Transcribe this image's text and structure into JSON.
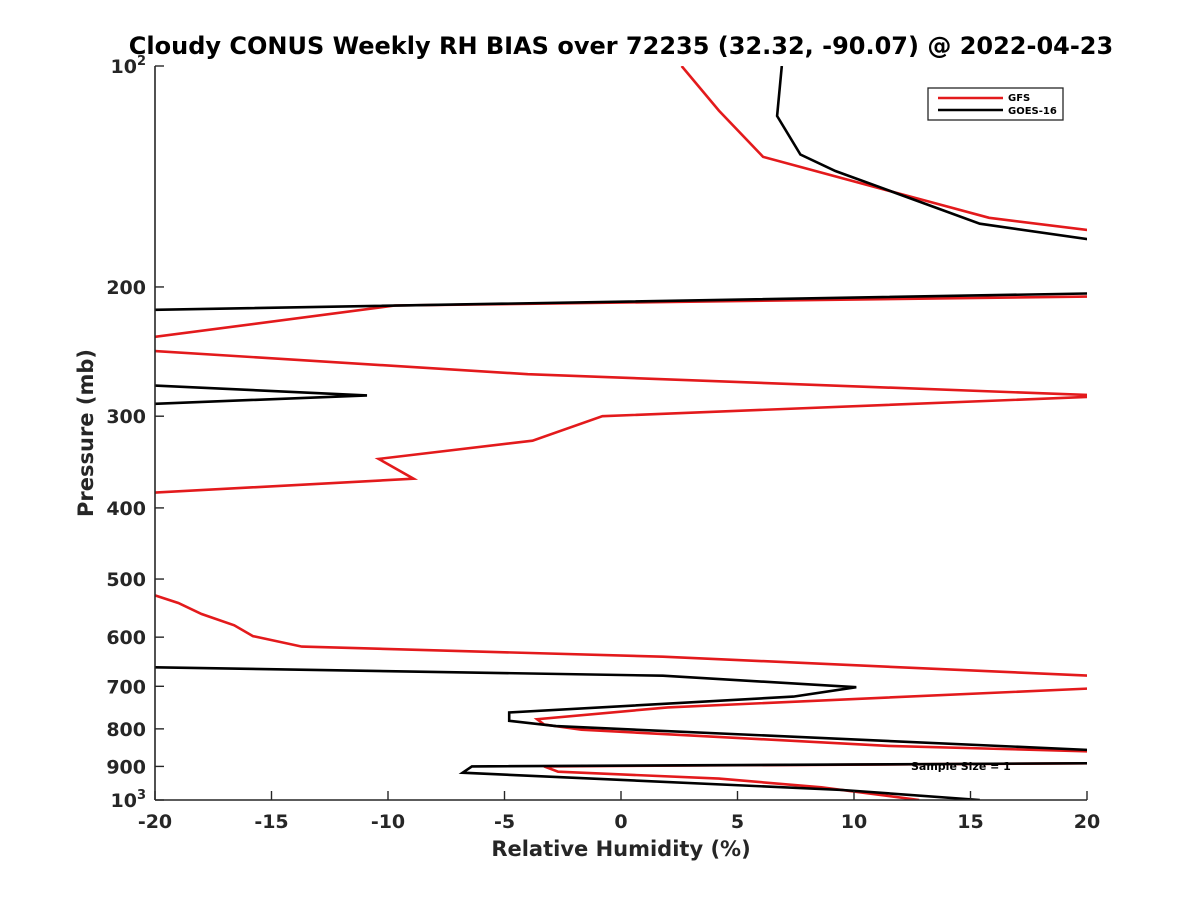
{
  "chart_data": {
    "type": "line",
    "title": "Cloudy CONUS Weekly RH BIAS over 72235 (32.32, -90.07) @ 2022-04-23",
    "xlabel": "Relative Humidity (%)",
    "ylabel": "Pressure (mb)",
    "xlim": [
      -20,
      20
    ],
    "ylim": [
      100,
      1000
    ],
    "yscale": "log",
    "xticks": [
      -20,
      -15,
      -10,
      -5,
      0,
      5,
      10,
      15,
      20
    ],
    "xtick_labels": [
      "-20",
      "-15",
      "-10",
      "-5",
      "0",
      "5",
      "10",
      "15",
      "20"
    ],
    "yticks": [
      {
        "value": 100,
        "base": "10",
        "exp": "2"
      },
      {
        "value": 200,
        "label": "200"
      },
      {
        "value": 300,
        "label": "300"
      },
      {
        "value": 400,
        "label": "400"
      },
      {
        "value": 500,
        "label": "500"
      },
      {
        "value": 600,
        "label": "600"
      },
      {
        "value": 700,
        "label": "700"
      },
      {
        "value": 800,
        "label": "800"
      },
      {
        "value": 900,
        "label": "900"
      },
      {
        "value": 1000,
        "base": "10",
        "exp": "3"
      }
    ],
    "legend_position": "top-right",
    "annotation": "Sample Size = 1",
    "series": [
      {
        "name": "GFS",
        "color": "#e31a1c",
        "points": [
          [
            2.6,
            100
          ],
          [
            4.2,
            115
          ],
          [
            6.1,
            133
          ],
          [
            15.8,
            161
          ],
          [
            20.5,
            168
          ],
          [
            20.5,
            206
          ],
          [
            -9.7,
            212
          ],
          [
            -20.5,
            235
          ],
          [
            -20.5,
            244
          ],
          [
            -4.0,
            263
          ],
          [
            20.5,
            281
          ],
          [
            20.5,
            282
          ],
          [
            -0.8,
            300
          ],
          [
            -3.8,
            324
          ],
          [
            -10.4,
            343
          ],
          [
            -8.9,
            365
          ],
          [
            -20.5,
            382
          ],
          [
            -20.5,
            520
          ],
          [
            -19.0,
            539
          ],
          [
            -18.0,
            558
          ],
          [
            -16.6,
            578
          ],
          [
            -15.8,
            598
          ],
          [
            -13.7,
            618
          ],
          [
            1.8,
            638
          ],
          [
            20.5,
            678
          ],
          [
            20.5,
            704
          ],
          [
            2.0,
            748
          ],
          [
            -3.6,
            776
          ],
          [
            -3.3,
            789
          ],
          [
            -1.7,
            802
          ],
          [
            11.5,
            844
          ],
          [
            20.5,
            859
          ],
          [
            20.5,
            891
          ],
          [
            -3.3,
            900
          ],
          [
            -2.7,
            915
          ],
          [
            4.2,
            935
          ],
          [
            8.6,
            961
          ],
          [
            12.8,
            1000
          ]
        ]
      },
      {
        "name": "GOES-16",
        "color": "#000000",
        "points": [
          [
            6.9,
            100
          ],
          [
            6.7,
            117
          ],
          [
            7.7,
            132
          ],
          [
            9.2,
            139
          ],
          [
            15.4,
            164
          ],
          [
            20.5,
            173
          ],
          [
            20.5,
            204
          ],
          [
            -20.5,
            215
          ],
          [
            -20.5,
            272
          ],
          [
            -10.9,
            281
          ],
          [
            -20.5,
            289
          ],
          [
            -20.5,
            659
          ],
          [
            1.8,
            677
          ],
          [
            10.1,
            702
          ],
          [
            7.4,
            723
          ],
          [
            -4.8,
            760
          ],
          [
            -4.8,
            780
          ],
          [
            -2.8,
            793
          ],
          [
            20.5,
            856
          ],
          [
            20.5,
            891
          ],
          [
            -6.4,
            900
          ],
          [
            -6.8,
            918
          ],
          [
            9.5,
            969
          ],
          [
            15.4,
            1000
          ]
        ]
      }
    ]
  }
}
